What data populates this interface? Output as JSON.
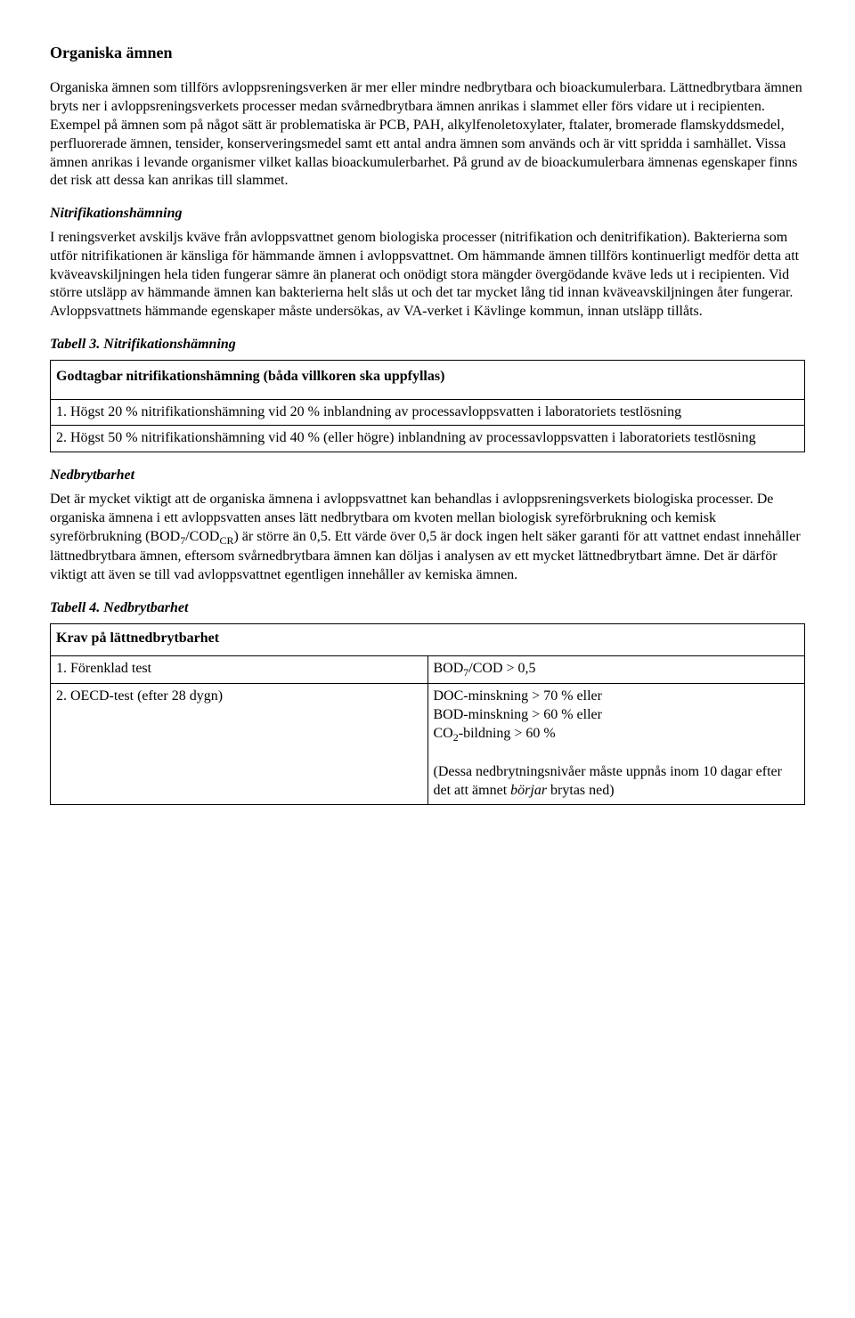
{
  "section1": {
    "heading": "Organiska ämnen",
    "para1": "Organiska ämnen som tillförs avloppsreningsverken är mer eller mindre nedbrytbara och bioackumulerbara. Lättnedbrytbara ämnen bryts ner i avloppsreningsverkets processer medan svårnedbrytbara ämnen anrikas i slammet eller förs vidare ut i recipienten. Exempel på ämnen som på något sätt är problematiska är PCB, PAH, alkylfenoletoxylater, ftalater, bromerade flamskyddsmedel, perfluorerade ämnen, tensider, konserveringsmedel samt ett antal andra ämnen som används och är vitt spridda i samhället. Vissa ämnen anrikas i levande organismer vilket kallas bioackumulerbarhet. På grund av de bioackumulerbara ämnenas egenskaper finns det risk att dessa kan anrikas till slammet."
  },
  "section2": {
    "heading": "Nitrifikationshämning",
    "para": "I reningsverket avskiljs kväve från avloppsvattnet genom biologiska processer (nitrifikation och denitrifikation). Bakterierna som utför nitrifikationen är känsliga för hämmande ämnen i avloppsvattnet. Om hämmande ämnen tillförs kontinuerligt medför detta att kväveavskiljningen hela tiden fungerar sämre än planerat och onödigt stora mängder övergödande kväve leds ut i recipienten. Vid större utsläpp av hämmande ämnen kan bakterierna helt slås ut och det tar mycket lång tid innan kväveavskiljningen åter fungerar. Avloppsvattnets hämmande egenskaper måste undersökas, av VA-verket i Kävlinge kommun, innan utsläpp tillåts."
  },
  "table3": {
    "caption": "Tabell 3. Nitrifikationshämning",
    "header": "Godtagbar nitrifikationshämning (båda villkoren ska uppfyllas)",
    "row1": "1. Högst 20 % nitrifikationshämning vid 20 % inblandning av processavloppsvatten  i laboratoriets testlösning",
    "row2": "2. Högst 50 % nitrifikationshämning vid 40 % (eller högre) inblandning av processavloppsvatten i laboratoriets testlösning"
  },
  "section3": {
    "heading": "Nedbrytbarhet",
    "para_html": "Det är mycket viktigt att de organiska ämnena i avloppsvattnet kan behandlas i avloppsreningsverkets biologiska processer. De organiska ämnena i ett avloppsvatten anses lätt nedbrytbara om kvoten mellan biologisk syreförbrukning och kemisk syreförbrukning (BOD<sub>7</sub>/COD<sub>CR</sub>) är större än 0,5. Ett värde över 0,5 är dock ingen helt säker garanti för att vattnet endast innehåller lättnedbrytbara ämnen, eftersom svårnedbrytbara ämnen kan döljas i analysen av ett mycket lättnedbrytbart ämne. Det är därför viktigt att även se till vad avloppsvattnet egentligen innehåller av kemiska ämnen."
  },
  "table4": {
    "caption": "Tabell 4. Nedbrytbarhet",
    "header": "Krav på lättnedbrytbarhet",
    "row1_left": "1. Förenklad test",
    "row1_right_html": "BOD<sub>7</sub>/COD > 0,5",
    "row2_left": "2. OECD-test (efter 28 dygn)",
    "row2_right_html": "DOC-minskning > 70 % eller<br>BOD-minskning > 60 % eller<br>CO<sub>2</sub>-bildning > 60 %<br><br>(Dessa nedbrytningsnivåer måste uppnås inom 10 dagar efter det att ämnet <i>börjar</i> brytas ned)"
  }
}
